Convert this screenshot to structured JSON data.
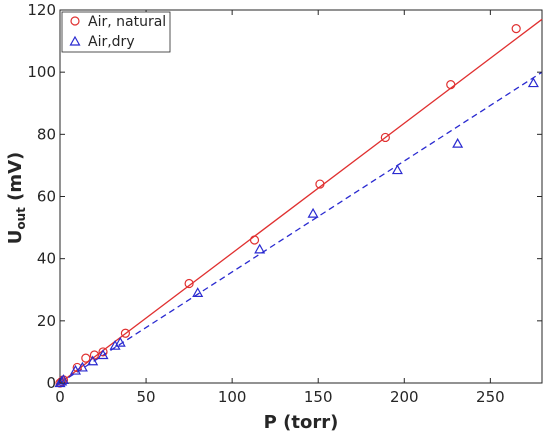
{
  "chart_data": {
    "type": "scatter",
    "xlabel": "P (torr)",
    "ylabel_main": "U",
    "ylabel_sub": "out",
    "ylabel_unit": " (mV)",
    "xlim": [
      0,
      280
    ],
    "ylim": [
      0,
      120
    ],
    "xticks": [
      0,
      50,
      100,
      150,
      200,
      250
    ],
    "yticks": [
      0,
      20,
      40,
      60,
      80,
      100,
      120
    ],
    "grid": false,
    "legend_position": "top-left",
    "series": [
      {
        "name": "Air, natural",
        "marker": "circle",
        "color": "#e03030",
        "x": [
          0,
          1,
          2,
          10,
          15,
          20,
          25,
          38,
          75,
          113,
          151,
          189,
          227,
          265
        ],
        "y": [
          0,
          0.5,
          1,
          5,
          8,
          9,
          10,
          16,
          32,
          46,
          64,
          79,
          96,
          114
        ],
        "fit": {
          "line_style": "solid",
          "x": [
            0,
            280
          ],
          "y": [
            0,
            117
          ]
        }
      },
      {
        "name": "Air,dry",
        "marker": "triangle",
        "color": "#2a2ad0",
        "x": [
          0,
          1,
          2,
          9,
          13,
          19,
          25,
          32,
          35,
          80,
          116,
          147,
          196,
          231,
          275
        ],
        "y": [
          0,
          0.5,
          1,
          4,
          5,
          7,
          9,
          12,
          13,
          29,
          43,
          54.5,
          68.5,
          77,
          96.5
        ],
        "fit": {
          "line_style": "dashed",
          "x": [
            0,
            280
          ],
          "y": [
            0,
            100
          ]
        }
      }
    ]
  }
}
